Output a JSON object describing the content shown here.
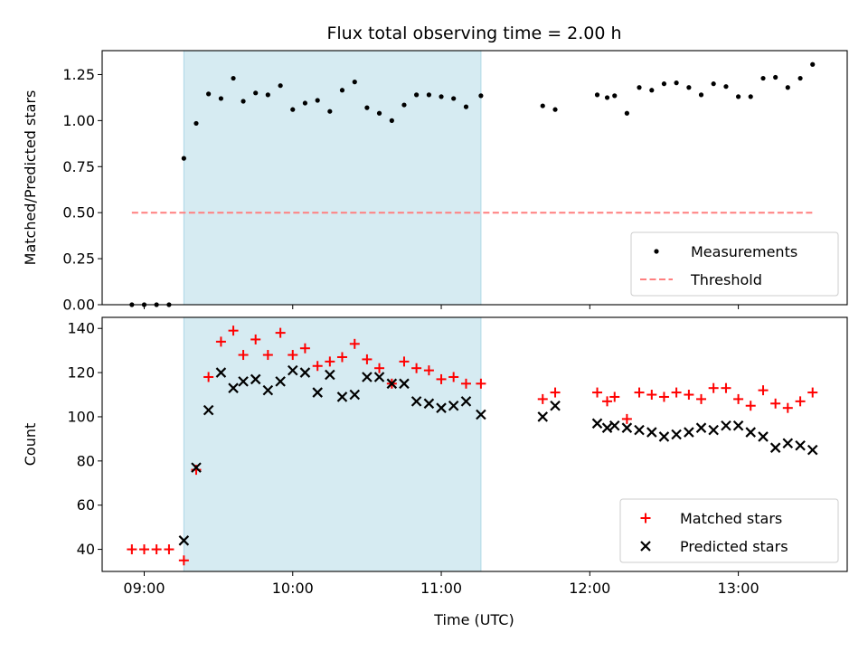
{
  "chart_data": {
    "type": "scatter",
    "title": "Flux total observing time = 2.00 h",
    "xlabel": "Time (UTC)",
    "x_ticks": [
      "09:00",
      "10:00",
      "11:00",
      "12:00",
      "13:00"
    ],
    "x_tick_hours": [
      9,
      10,
      11,
      12,
      13
    ],
    "xlim_hours": [
      8.717,
      13.733
    ],
    "highlight_span_hours": [
      9.267,
      11.267
    ],
    "highlight_color": "#add8e6",
    "panels": [
      {
        "ylabel": "Matched/Predicted stars",
        "ylim": [
          0,
          1.38
        ],
        "y_ticks": [
          "0.00",
          "0.25",
          "0.50",
          "0.75",
          "1.00",
          "1.25"
        ],
        "y_tick_values": [
          0,
          0.25,
          0.5,
          0.75,
          1.0,
          1.25
        ],
        "legend_position": "lower-right",
        "series": [
          {
            "name": "Measurements",
            "marker": "dot",
            "color": "#000000",
            "x_hours": [
              8.917,
              9.0,
              9.083,
              9.167,
              9.267,
              9.35,
              9.433,
              9.517,
              9.6,
              9.667,
              9.75,
              9.833,
              9.917,
              10.0,
              10.083,
              10.167,
              10.25,
              10.333,
              10.417,
              10.5,
              10.583,
              10.667,
              10.75,
              10.833,
              10.917,
              11.0,
              11.083,
              11.167,
              11.267,
              11.683,
              11.767,
              12.05,
              12.117,
              12.167,
              12.25,
              12.333,
              12.417,
              12.5,
              12.583,
              12.667,
              12.75,
              12.833,
              12.917,
              13.0,
              13.083,
              13.167,
              13.25,
              13.333,
              13.417,
              13.5
            ],
            "values": [
              0.0,
              0.0,
              0.0,
              0.0,
              0.795,
              0.985,
              1.145,
              1.12,
              1.23,
              1.105,
              1.15,
              1.14,
              1.19,
              1.06,
              1.095,
              1.11,
              1.05,
              1.165,
              1.21,
              1.07,
              1.04,
              1.0,
              1.085,
              1.14,
              1.14,
              1.13,
              1.12,
              1.075,
              1.135,
              1.08,
              1.06,
              1.14,
              1.125,
              1.135,
              1.04,
              1.18,
              1.165,
              1.2,
              1.205,
              1.18,
              1.14,
              1.2,
              1.185,
              1.13,
              1.13,
              1.23,
              1.235,
              1.18,
              1.23,
              1.305
            ]
          },
          {
            "name": "Threshold",
            "marker": "dashed-line",
            "color": "#ff7f7f",
            "x_hours": [
              8.917,
              13.5
            ],
            "values": [
              0.5,
              0.5
            ]
          }
        ]
      },
      {
        "ylabel": "Count",
        "ylim": [
          30,
          145
        ],
        "y_ticks": [
          "40",
          "60",
          "80",
          "100",
          "120",
          "140"
        ],
        "y_tick_values": [
          40,
          60,
          80,
          100,
          120,
          140
        ],
        "legend_position": "lower-right",
        "series": [
          {
            "name": "Matched stars",
            "marker": "plus",
            "color": "#ff0000",
            "x_hours": [
              8.917,
              9.0,
              9.083,
              9.167,
              9.267,
              9.35,
              9.433,
              9.517,
              9.6,
              9.667,
              9.75,
              9.833,
              9.917,
              10.0,
              10.083,
              10.167,
              10.25,
              10.333,
              10.417,
              10.5,
              10.583,
              10.667,
              10.75,
              10.833,
              10.917,
              11.0,
              11.083,
              11.167,
              11.267,
              11.683,
              11.767,
              12.05,
              12.117,
              12.167,
              12.25,
              12.333,
              12.417,
              12.5,
              12.583,
              12.667,
              12.75,
              12.833,
              12.917,
              13.0,
              13.083,
              13.167,
              13.25,
              13.333,
              13.417,
              13.5
            ],
            "values": [
              40,
              40,
              40,
              40,
              35,
              76,
              118,
              134,
              139,
              128,
              135,
              128,
              138,
              128,
              131,
              123,
              125,
              127,
              133,
              126,
              122,
              115,
              125,
              122,
              121,
              117,
              118,
              115,
              115,
              108,
              111,
              111,
              107,
              109,
              99,
              111,
              110,
              109,
              111,
              110,
              108,
              113,
              113,
              108,
              105,
              112,
              106,
              104,
              107,
              111
            ]
          },
          {
            "name": "Predicted stars",
            "marker": "x",
            "color": "#000000",
            "x_hours": [
              9.267,
              9.35,
              9.433,
              9.517,
              9.6,
              9.667,
              9.75,
              9.833,
              9.917,
              10.0,
              10.083,
              10.167,
              10.25,
              10.333,
              10.417,
              10.5,
              10.583,
              10.667,
              10.75,
              10.833,
              10.917,
              11.0,
              11.083,
              11.167,
              11.267,
              11.683,
              11.767,
              12.05,
              12.117,
              12.167,
              12.25,
              12.333,
              12.417,
              12.5,
              12.583,
              12.667,
              12.75,
              12.833,
              12.917,
              13.0,
              13.083,
              13.167,
              13.25,
              13.333,
              13.417,
              13.5
            ],
            "values": [
              44,
              77,
              103,
              120,
              113,
              116,
              117,
              112,
              116,
              121,
              120,
              111,
              119,
              109,
              110,
              118,
              118,
              115,
              115,
              107,
              106,
              104,
              105,
              107,
              101,
              100,
              105,
              97,
              95,
              96,
              95,
              94,
              93,
              91,
              92,
              93,
              95,
              94,
              96,
              96,
              93,
              91,
              86,
              88,
              87,
              85
            ]
          }
        ]
      }
    ]
  }
}
